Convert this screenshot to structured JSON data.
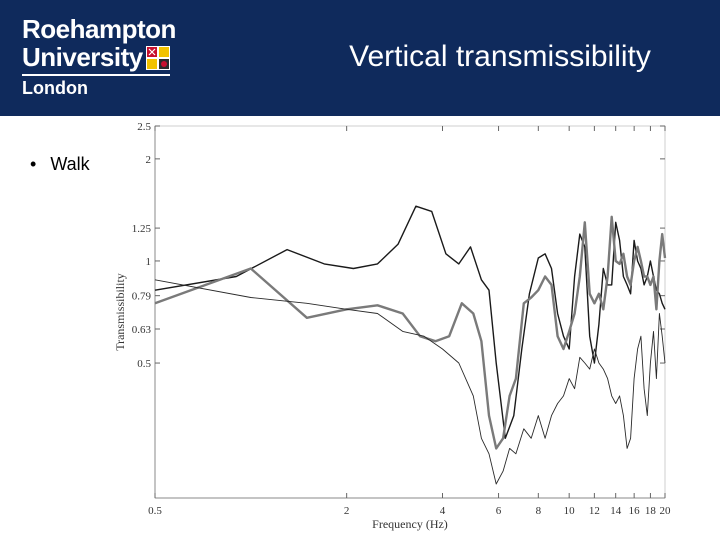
{
  "header": {
    "logo_line1": "Roehampton",
    "logo_line2": "University",
    "logo_line3": "London",
    "title": "Vertical transmissibility",
    "background": "#0f2a5c"
  },
  "bullet": {
    "text": "Walk"
  },
  "chart_data": {
    "type": "line",
    "xlabel": "Frequency (Hz)",
    "ylabel": "Transmissibility",
    "xlim": [
      0.5,
      20
    ],
    "ylim": [
      0.2,
      2.5
    ],
    "yscale": "log",
    "x_ticks": [
      {
        "value": 0.5,
        "label": "0.5"
      },
      {
        "value": 2,
        "label": "2"
      },
      {
        "value": 4,
        "label": "4"
      },
      {
        "value": 6,
        "label": "6"
      },
      {
        "value": 8,
        "label": "8"
      },
      {
        "value": 10,
        "label": "10"
      },
      {
        "value": 12,
        "label": "12"
      },
      {
        "value": 14,
        "label": "14"
      },
      {
        "value": 16,
        "label": "16"
      },
      {
        "value": 18,
        "label": "18"
      },
      {
        "value": 20,
        "label": "20"
      }
    ],
    "y_ticks": [
      {
        "value": 0.5,
        "label": "0.5"
      },
      {
        "value": 0.63,
        "label": "0.63"
      },
      {
        "value": 0.79,
        "label": "0.79"
      },
      {
        "value": 1,
        "label": "1"
      },
      {
        "value": 1.25,
        "label": "1.25"
      },
      {
        "value": 2,
        "label": "2"
      },
      {
        "value": 2.5,
        "label": "2.5"
      }
    ],
    "grid": false,
    "series": [
      {
        "style": "dark-solid",
        "color": "#1a1a1a",
        "x": [
          0.5,
          0.9,
          1.3,
          1.7,
          2.1,
          2.5,
          2.9,
          3.3,
          3.7,
          4.1,
          4.5,
          4.9,
          5.3,
          5.6,
          5.9,
          6.3,
          6.7,
          7.1,
          7.5,
          8.0,
          8.4,
          8.8,
          9.2,
          9.6,
          10.0,
          10.4,
          10.8,
          11.2,
          11.6,
          12.0,
          12.4,
          12.8,
          13.2,
          13.6,
          14.0,
          14.4,
          14.8,
          15.2,
          15.6,
          16.0,
          16.4,
          16.8,
          17.2,
          17.6,
          18.0,
          18.4,
          18.8,
          19.2,
          19.6,
          20.0
        ],
        "y": [
          0.82,
          0.9,
          1.08,
          0.98,
          0.95,
          0.98,
          1.12,
          1.45,
          1.4,
          1.05,
          0.98,
          1.1,
          0.88,
          0.82,
          0.5,
          0.3,
          0.35,
          0.55,
          0.8,
          1.02,
          1.05,
          0.95,
          0.7,
          0.6,
          0.55,
          0.9,
          1.2,
          1.1,
          0.6,
          0.5,
          0.65,
          0.95,
          0.85,
          0.85,
          1.3,
          1.15,
          0.9,
          0.85,
          0.8,
          1.15,
          1.0,
          0.95,
          0.85,
          0.9,
          1.0,
          0.9,
          0.82,
          0.8,
          0.75,
          0.72
        ]
      },
      {
        "style": "gray-thick",
        "color": "#7a7a7a",
        "x": [
          0.5,
          1.0,
          1.5,
          2.0,
          2.5,
          3.0,
          3.4,
          3.8,
          4.2,
          4.6,
          5.0,
          5.3,
          5.6,
          5.9,
          6.2,
          6.5,
          6.8,
          7.2,
          7.6,
          8.0,
          8.4,
          8.8,
          9.2,
          9.6,
          10.0,
          10.4,
          10.8,
          11.2,
          11.6,
          12.0,
          12.4,
          12.8,
          13.2,
          13.6,
          14.0,
          14.4,
          14.8,
          15.2,
          15.6,
          16.0,
          16.4,
          16.8,
          17.2,
          17.6,
          18.0,
          18.4,
          18.8,
          19.2,
          19.6,
          20.0
        ],
        "y": [
          0.75,
          0.95,
          0.68,
          0.72,
          0.74,
          0.7,
          0.6,
          0.58,
          0.6,
          0.75,
          0.7,
          0.58,
          0.35,
          0.28,
          0.3,
          0.4,
          0.45,
          0.75,
          0.78,
          0.82,
          0.9,
          0.85,
          0.6,
          0.55,
          0.62,
          0.7,
          0.9,
          1.3,
          0.8,
          0.75,
          0.8,
          0.72,
          0.9,
          1.35,
          1.0,
          0.98,
          1.05,
          0.9,
          0.85,
          1.0,
          1.1,
          1.0,
          0.9,
          0.9,
          0.85,
          0.9,
          0.72,
          1.0,
          1.2,
          1.02
        ]
      },
      {
        "style": "dark-thin",
        "color": "#2a2a2a",
        "x": [
          0.5,
          1.0,
          1.5,
          2.0,
          2.5,
          3.0,
          3.5,
          4.0,
          4.5,
          5.0,
          5.3,
          5.6,
          5.9,
          6.2,
          6.5,
          6.8,
          7.2,
          7.6,
          8.0,
          8.4,
          8.8,
          9.2,
          9.6,
          10.0,
          10.4,
          10.8,
          11.2,
          11.6,
          12.0,
          12.4,
          12.8,
          13.2,
          13.6,
          14.0,
          14.4,
          14.8,
          15.2,
          15.6,
          16.0,
          16.4,
          16.8,
          17.2,
          17.6,
          18.0,
          18.4,
          18.8,
          19.2,
          19.6,
          20.0
        ],
        "y": [
          0.88,
          0.78,
          0.75,
          0.72,
          0.7,
          0.62,
          0.6,
          0.55,
          0.5,
          0.4,
          0.3,
          0.27,
          0.22,
          0.24,
          0.28,
          0.27,
          0.32,
          0.3,
          0.35,
          0.3,
          0.35,
          0.38,
          0.4,
          0.45,
          0.42,
          0.52,
          0.5,
          0.48,
          0.55,
          0.5,
          0.48,
          0.45,
          0.4,
          0.38,
          0.4,
          0.35,
          0.28,
          0.3,
          0.45,
          0.55,
          0.6,
          0.42,
          0.35,
          0.5,
          0.62,
          0.45,
          0.7,
          0.6,
          0.5
        ]
      }
    ]
  }
}
